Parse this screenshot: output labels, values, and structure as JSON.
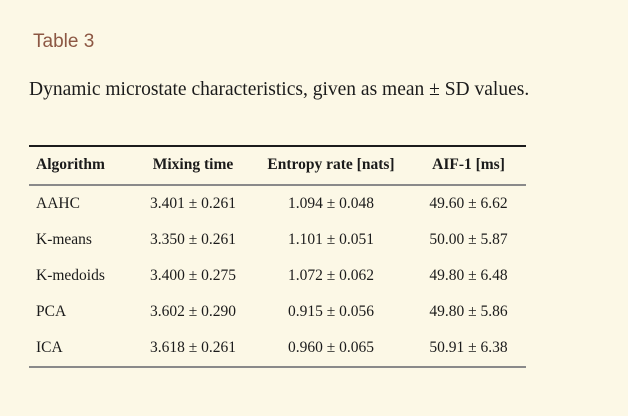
{
  "page": {
    "background_color": "#fcf8e6",
    "title_color": "#8c5743",
    "text_color": "#1b1b1b"
  },
  "title": {
    "label": "Table 3"
  },
  "caption": "Dynamic microstate characteristics, given as mean ± SD values.",
  "table": {
    "headers": [
      "Algorithm",
      "Mixing time",
      "Entropy rate [nats]",
      "AIF-1 [ms]"
    ],
    "rows": [
      [
        "AAHC",
        "3.401 ± 0.261",
        "1.094 ± 0.048",
        "49.60 ± 6.62"
      ],
      [
        "K-means",
        "3.350 ± 0.261",
        "1.101 ± 0.051",
        "50.00 ± 5.87"
      ],
      [
        "K-medoids",
        "3.400 ± 0.275",
        "1.072 ± 0.062",
        "49.80 ± 6.48"
      ],
      [
        "PCA",
        "3.602 ± 0.290",
        "0.915 ± 0.056",
        "49.80 ± 5.86"
      ],
      [
        "ICA",
        "3.618 ± 0.261",
        "0.960 ± 0.065",
        "50.91 ± 6.38"
      ]
    ]
  },
  "chart_data": {
    "type": "table",
    "title": "Table 3 — Dynamic microstate characteristics, given as mean ± SD values.",
    "columns": [
      "Algorithm",
      "Mixing time",
      "Entropy rate [nats]",
      "AIF-1 [ms]"
    ],
    "rows": [
      {
        "algorithm": "AAHC",
        "mixing_time_mean": 3.401,
        "mixing_time_sd": 0.261,
        "entropy_rate_mean": 1.094,
        "entropy_rate_sd": 0.048,
        "aif1_ms_mean": 49.6,
        "aif1_ms_sd": 6.62
      },
      {
        "algorithm": "K-means",
        "mixing_time_mean": 3.35,
        "mixing_time_sd": 0.261,
        "entropy_rate_mean": 1.101,
        "entropy_rate_sd": 0.051,
        "aif1_ms_mean": 50.0,
        "aif1_ms_sd": 5.87
      },
      {
        "algorithm": "K-medoids",
        "mixing_time_mean": 3.4,
        "mixing_time_sd": 0.275,
        "entropy_rate_mean": 1.072,
        "entropy_rate_sd": 0.062,
        "aif1_ms_mean": 49.8,
        "aif1_ms_sd": 6.48
      },
      {
        "algorithm": "PCA",
        "mixing_time_mean": 3.602,
        "mixing_time_sd": 0.29,
        "entropy_rate_mean": 0.915,
        "entropy_rate_sd": 0.056,
        "aif1_ms_mean": 49.8,
        "aif1_ms_sd": 5.86
      },
      {
        "algorithm": "ICA",
        "mixing_time_mean": 3.618,
        "mixing_time_sd": 0.261,
        "entropy_rate_mean": 0.96,
        "entropy_rate_sd": 0.065,
        "aif1_ms_mean": 50.91,
        "aif1_ms_sd": 6.38
      }
    ]
  }
}
